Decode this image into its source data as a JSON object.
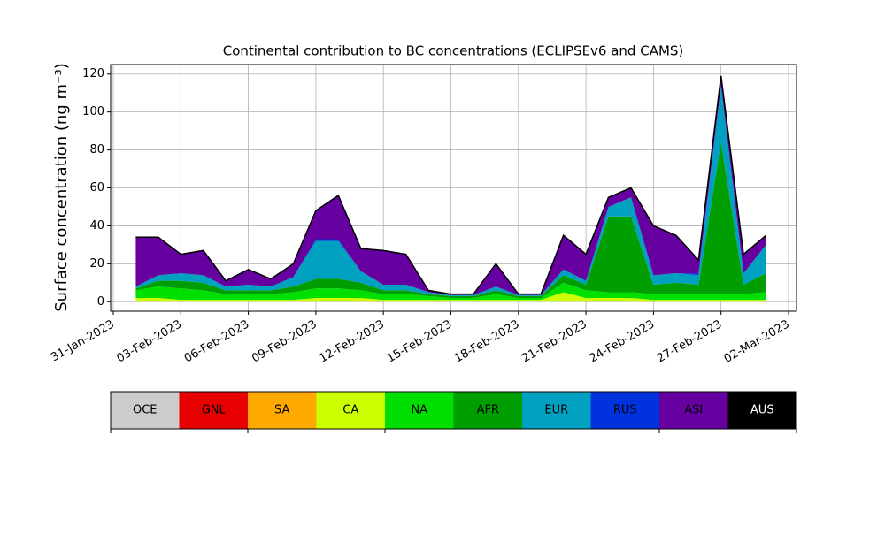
{
  "chart_data": {
    "type": "stacked_area",
    "title": "Continental contribution to BC concentrations (ECLIPSEv6 and CAMS)",
    "y_label": "Surface concentration (ng m⁻³)",
    "x": [
      "2023-02-01",
      "2023-02-02",
      "2023-02-03",
      "2023-02-04",
      "2023-02-05",
      "2023-02-06",
      "2023-02-07",
      "2023-02-08",
      "2023-02-09",
      "2023-02-10",
      "2023-02-11",
      "2023-02-12",
      "2023-02-13",
      "2023-02-14",
      "2023-02-15",
      "2023-02-16",
      "2023-02-17",
      "2023-02-18",
      "2023-02-19",
      "2023-02-20",
      "2023-02-21",
      "2023-02-22",
      "2023-02-23",
      "2023-02-24",
      "2023-02-25",
      "2023-02-26",
      "2023-02-27",
      "2023-02-28",
      "2023-03-01"
    ],
    "xlim": [
      "2023-01-31",
      "2023-03-02"
    ],
    "xticks": [
      {
        "value": "2023-01-31",
        "label": "31-Jan-2023"
      },
      {
        "value": "2023-02-03",
        "label": "03-Feb-2023"
      },
      {
        "value": "2023-02-06",
        "label": "06-Feb-2023"
      },
      {
        "value": "2023-02-09",
        "label": "09-Feb-2023"
      },
      {
        "value": "2023-02-12",
        "label": "12-Feb-2023"
      },
      {
        "value": "2023-02-15",
        "label": "15-Feb-2023"
      },
      {
        "value": "2023-02-18",
        "label": "18-Feb-2023"
      },
      {
        "value": "2023-02-21",
        "label": "21-Feb-2023"
      },
      {
        "value": "2023-02-24",
        "label": "24-Feb-2023"
      },
      {
        "value": "2023-02-27",
        "label": "27-Feb-2023"
      },
      {
        "value": "2023-03-02",
        "label": "02-Mar-2023"
      }
    ],
    "ylim": [
      -5,
      125
    ],
    "yticks": [
      0,
      20,
      40,
      60,
      80,
      100,
      120
    ],
    "grid": true,
    "series": [
      {
        "name": "OCE",
        "color": "#cccccc",
        "values": [
          0,
          0,
          0,
          0,
          0,
          0,
          0,
          0,
          0,
          0,
          0,
          0,
          0,
          0,
          0,
          0,
          0,
          0,
          0,
          0,
          0,
          0,
          0,
          0,
          0,
          0,
          0,
          0,
          0
        ]
      },
      {
        "name": "GNL",
        "color": "#e60000",
        "values": [
          0,
          0,
          0,
          0,
          0,
          0,
          0,
          0,
          0,
          0,
          0,
          0,
          0,
          0,
          0,
          0,
          0,
          0,
          0,
          0,
          0,
          0,
          0,
          0,
          0,
          0,
          0,
          0,
          0
        ]
      },
      {
        "name": "SA",
        "color": "#ffaa00",
        "values": [
          0,
          0,
          0,
          0,
          0,
          0,
          0,
          0,
          0,
          0,
          0,
          0,
          0,
          0,
          0,
          0,
          0,
          0,
          0,
          0,
          0,
          0,
          0,
          0,
          0,
          0,
          0,
          0,
          0
        ]
      },
      {
        "name": "CA",
        "color": "#ccff00",
        "values": [
          2,
          2,
          1,
          1,
          1,
          1,
          1,
          1,
          2,
          2,
          2,
          1,
          1,
          1,
          1,
          1,
          1,
          1,
          1,
          5,
          2,
          2,
          2,
          1,
          1,
          1,
          1,
          1,
          1
        ]
      },
      {
        "name": "NA",
        "color": "#00e000",
        "values": [
          4,
          6,
          6,
          5,
          3,
          3,
          3,
          4,
          5,
          5,
          4,
          3,
          3,
          2,
          1,
          1,
          3,
          1,
          1,
          5,
          4,
          3,
          3,
          3,
          3,
          3,
          3,
          3,
          4
        ]
      },
      {
        "name": "AFR",
        "color": "#009e00",
        "values": [
          1,
          3,
          4,
          4,
          2,
          2,
          2,
          3,
          5,
          5,
          4,
          2,
          2,
          1,
          1,
          1,
          2,
          1,
          1,
          4,
          3,
          40,
          40,
          5,
          6,
          5,
          80,
          5,
          10
        ]
      },
      {
        "name": "EUR",
        "color": "#00a0c0",
        "values": [
          1,
          3,
          4,
          4,
          2,
          3,
          2,
          5,
          20,
          20,
          6,
          3,
          3,
          1,
          0.5,
          0.5,
          2,
          0.5,
          0.5,
          3,
          2,
          5,
          10,
          5,
          5,
          5,
          30,
          6,
          15
        ]
      },
      {
        "name": "RUS",
        "color": "#0033dd",
        "values": [
          0,
          0,
          0,
          0,
          0,
          0,
          0,
          0,
          1,
          1,
          0,
          0,
          0,
          0,
          0,
          0,
          0,
          0,
          0,
          0,
          0,
          0,
          0,
          0,
          0,
          1,
          0,
          0,
          0
        ]
      },
      {
        "name": "ASI",
        "color": "#6600a0",
        "values": [
          26,
          20,
          10,
          13,
          3,
          8,
          4,
          7,
          15,
          23,
          12,
          18,
          16,
          1,
          0.5,
          0.5,
          12,
          0.5,
          0.5,
          18,
          14,
          5,
          5,
          26,
          20,
          7,
          5,
          10,
          5
        ]
      },
      {
        "name": "AUS",
        "color": "#000000",
        "values": [
          0,
          0,
          0,
          0,
          0,
          0,
          0,
          0,
          0,
          0,
          0,
          0,
          0,
          0,
          0,
          0,
          0,
          0,
          0,
          0,
          0,
          0,
          0,
          0,
          0,
          0,
          0,
          0,
          0
        ]
      }
    ]
  }
}
